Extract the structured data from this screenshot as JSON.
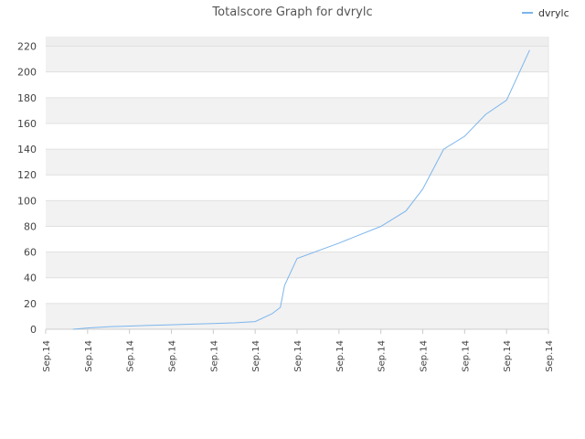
{
  "chart_data": {
    "type": "line",
    "title": "Totalscore Graph for dvrylc",
    "xlabel": "",
    "ylabel": "",
    "x_tick_labels": [
      "Sep.14",
      "Sep.14",
      "Sep.14",
      "Sep.14",
      "Sep.14",
      "Sep.14",
      "Sep.14",
      "Sep.14",
      "Sep.14",
      "Sep.14",
      "Sep.14",
      "Sep.14",
      "Sep.14"
    ],
    "y_tick_labels": [
      "0",
      "20",
      "40",
      "60",
      "80",
      "100",
      "120",
      "140",
      "160",
      "180",
      "200",
      "220"
    ],
    "ylim": [
      0,
      220
    ],
    "grid": true,
    "legend_position": "top-right",
    "series": [
      {
        "name": "dvrylc",
        "color": "#7cb5ec",
        "x": [
          0.65,
          1.0,
          1.5,
          2.0,
          2.5,
          3.0,
          3.5,
          4.0,
          4.5,
          5.0,
          5.4,
          5.6,
          5.7,
          6.0,
          7.0,
          8.0,
          8.6,
          9.0,
          9.5,
          10.0,
          10.5,
          11.0,
          11.55
        ],
        "values": [
          0,
          1,
          2,
          2.5,
          3,
          3.5,
          4,
          4.5,
          5,
          6,
          12,
          17,
          34,
          55,
          67,
          80,
          92,
          109,
          140,
          150,
          167,
          178,
          217
        ]
      }
    ]
  }
}
